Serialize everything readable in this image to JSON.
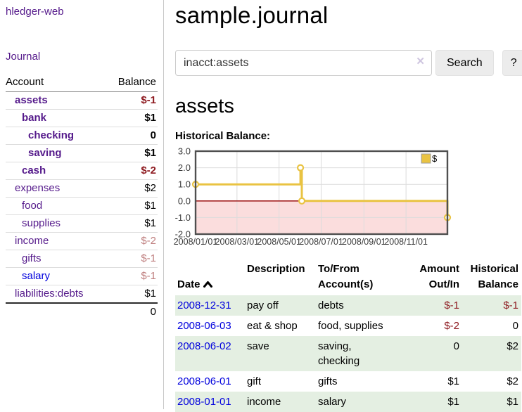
{
  "colors": {
    "link_purple": "#551a8b",
    "link_blue": "#0000dd",
    "negative_strong": "#8e1b21",
    "negative_muted": "#bf7f7f",
    "row_green": "#e4efe2",
    "series_gold": "#e9c342",
    "negative_fill_pink": "#fbdddd",
    "zero_line_red": "#a32020",
    "grid_gray": "#dcdcdc",
    "plot_border": "#4f4f4f",
    "button_bg": "#ececec"
  },
  "sidebar": {
    "app_title": "hledger-web",
    "journal_label": "Journal",
    "accounts_table": {
      "headers": {
        "account": "Account",
        "balance": "Balance"
      },
      "rows": [
        {
          "label": "assets",
          "level": 1,
          "in_account": true,
          "balance": "$-1",
          "tone": "neg-strong",
          "link": "purple"
        },
        {
          "label": "bank",
          "level": 2,
          "in_account": true,
          "balance": "$1",
          "tone": "normal",
          "link": "purple"
        },
        {
          "label": "checking",
          "level": 3,
          "in_account": true,
          "balance": "0",
          "tone": "normal",
          "link": "purple"
        },
        {
          "label": "saving",
          "level": 3,
          "in_account": true,
          "balance": "$1",
          "tone": "normal",
          "link": "purple"
        },
        {
          "label": "cash",
          "level": 2,
          "in_account": true,
          "balance": "$-2",
          "tone": "neg-strong",
          "link": "purple"
        },
        {
          "label": "expenses",
          "level": 1,
          "in_account": false,
          "balance": "$2",
          "tone": "normal",
          "link": "purple"
        },
        {
          "label": "food",
          "level": 2,
          "in_account": false,
          "balance": "$1",
          "tone": "normal",
          "link": "purple"
        },
        {
          "label": "supplies",
          "level": 2,
          "in_account": false,
          "balance": "$1",
          "tone": "normal",
          "link": "purple"
        },
        {
          "label": "income",
          "level": 1,
          "in_account": false,
          "balance": "$-2",
          "tone": "neg-muted",
          "link": "purple"
        },
        {
          "label": "gifts",
          "level": 2,
          "in_account": false,
          "balance": "$-1",
          "tone": "neg-muted",
          "link": "purple"
        },
        {
          "label": "salary",
          "level": 2,
          "in_account": false,
          "balance": "$-1",
          "tone": "neg-muted",
          "link": "blue"
        },
        {
          "label": "liabilities:debts",
          "level": 1,
          "in_account": false,
          "balance": "$1",
          "tone": "normal",
          "link": "purple"
        }
      ],
      "total": "0"
    }
  },
  "main": {
    "title": "sample.journal",
    "search": {
      "value": "inacct:assets",
      "clear_icon": "✕",
      "button_label": "Search",
      "help_label": "?"
    },
    "account_heading": "assets",
    "chart_heading": "Historical Balance:",
    "register_table": {
      "headers": {
        "date": "Date",
        "description": "Description",
        "accounts": "To/From\nAccount(s)",
        "amount": "Amount\nOut/In",
        "balance": "Historical\nBalance"
      },
      "sort_icon": "chevron-up",
      "rows": [
        {
          "date": "2008-12-31",
          "description": "pay off",
          "accounts": "debts",
          "amount": "$-1",
          "amount_negative": true,
          "balance": "$-1",
          "balance_negative": true
        },
        {
          "date": "2008-06-03",
          "description": "eat & shop",
          "accounts": "food, supplies",
          "amount": "$-2",
          "amount_negative": true,
          "balance": "0",
          "balance_negative": false
        },
        {
          "date": "2008-06-02",
          "description": "save",
          "accounts": "saving,\nchecking",
          "amount": "0",
          "amount_negative": false,
          "balance": "$2",
          "balance_negative": false
        },
        {
          "date": "2008-06-01",
          "description": "gift",
          "accounts": "gifts",
          "amount": "$1",
          "amount_negative": false,
          "balance": "$2",
          "balance_negative": false
        },
        {
          "date": "2008-01-01",
          "description": "income",
          "accounts": "salary",
          "amount": "$1",
          "amount_negative": false,
          "balance": "$1",
          "balance_negative": false
        }
      ]
    }
  },
  "chart_data": {
    "type": "line",
    "step": true,
    "title": "Historical Balance",
    "series": [
      {
        "name": "$",
        "points": [
          [
            "2008-01-01",
            1
          ],
          [
            "2008-06-01",
            2
          ],
          [
            "2008-06-02",
            2
          ],
          [
            "2008-06-03",
            0
          ],
          [
            "2008-12-31",
            -1
          ]
        ]
      }
    ],
    "x_range": [
      "2008-01-01",
      "2008-12-31"
    ],
    "ylim": [
      -2,
      3
    ],
    "y_ticks": [
      {
        "value": 3,
        "label": "3.0"
      },
      {
        "value": 2,
        "label": "2.0"
      },
      {
        "value": 1,
        "label": "1.0"
      },
      {
        "value": 0,
        "label": "0.0"
      },
      {
        "value": -1,
        "label": "-1.0"
      },
      {
        "value": -2,
        "label": "-2.0"
      }
    ],
    "x_ticks": [
      {
        "date": "2008-01-01",
        "label": "2008/01/01"
      },
      {
        "date": "2008-03-01",
        "label": "2008/03/01"
      },
      {
        "date": "2008-05-01",
        "label": "2008/05/01"
      },
      {
        "date": "2008-07-01",
        "label": "2008/07/01"
      },
      {
        "date": "2008-09-01",
        "label": "2008/09/01"
      },
      {
        "date": "2008-11-01",
        "label": "2008/11/01"
      }
    ],
    "legend": {
      "label": "$",
      "position": "top-right"
    },
    "grid": true,
    "negative_region_shaded": true
  }
}
